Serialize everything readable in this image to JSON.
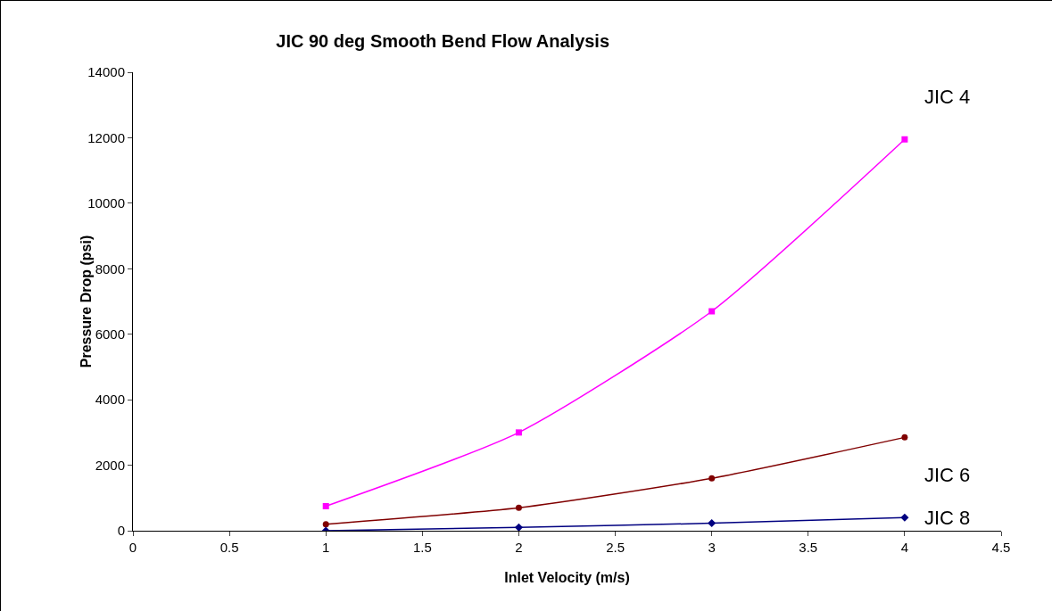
{
  "chart_data": {
    "type": "line",
    "title": "JIC 90 deg Smooth Bend Flow Analysis",
    "xlabel": "Inlet Velocity (m/s)",
    "ylabel": "Pressure Drop (psi)",
    "x": [
      1,
      2,
      3,
      4
    ],
    "series": [
      {
        "name": "JIC 4",
        "color": "#ff00ff",
        "marker": "square",
        "values": [
          750,
          3000,
          6700,
          11950
        ]
      },
      {
        "name": "JIC 6",
        "color": "#800000",
        "marker": "circle",
        "values": [
          200,
          700,
          1600,
          2850
        ]
      },
      {
        "name": "JIC 8",
        "color": "#000080",
        "marker": "diamond",
        "values": [
          0,
          100,
          230,
          400
        ]
      }
    ],
    "xlim": [
      0,
      4.5
    ],
    "xticks": [
      0,
      0.5,
      1,
      1.5,
      2,
      2.5,
      3,
      3.5,
      4,
      4.5
    ],
    "ylim": [
      0,
      14000
    ],
    "yticks": [
      0,
      2000,
      4000,
      6000,
      8000,
      10000,
      12000,
      14000
    ],
    "grid": false,
    "legend": false,
    "line_style": "solid"
  }
}
